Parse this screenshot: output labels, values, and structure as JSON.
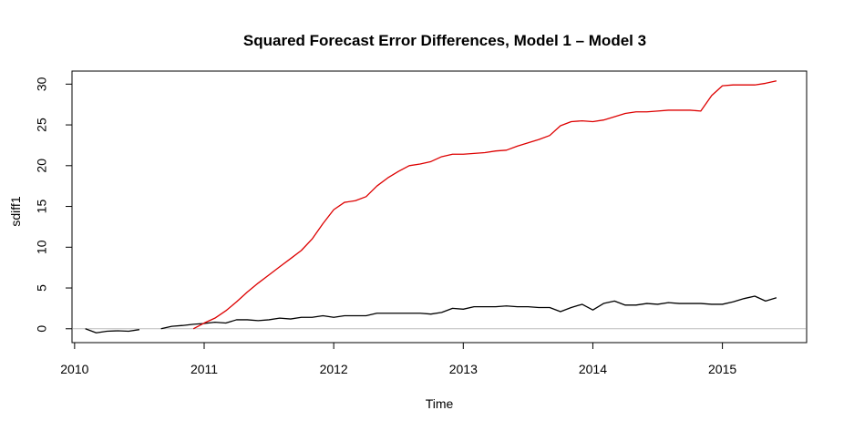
{
  "chart_data": {
    "type": "line",
    "title": "Squared Forecast Error Differences, Model 1 – Model 3",
    "xlabel": "Time",
    "ylabel": "sdiff1",
    "xlim": [
      2009.98,
      2015.65
    ],
    "ylim": [
      -1.7,
      31.6
    ],
    "x_ticks": [
      2010,
      2011,
      2012,
      2013,
      2014,
      2015
    ],
    "y_ticks": [
      0,
      5,
      10,
      15,
      20,
      25,
      30
    ],
    "reference_line": {
      "y": 0,
      "color": "#bebebe"
    },
    "series": [
      {
        "color": "#000000",
        "segments": [
          [
            [
              2010.083,
              0.0
            ],
            [
              2010.167,
              -0.5
            ],
            [
              2010.25,
              -0.3
            ],
            [
              2010.333,
              -0.25
            ],
            [
              2010.417,
              -0.3
            ],
            [
              2010.5,
              -0.1
            ]
          ],
          [
            [
              2010.667,
              0.0
            ],
            [
              2010.75,
              0.3
            ],
            [
              2010.833,
              0.4
            ],
            [
              2010.917,
              0.55
            ],
            [
              2011.0,
              0.65
            ],
            [
              2011.083,
              0.8
            ],
            [
              2011.167,
              0.7
            ],
            [
              2011.25,
              1.1
            ],
            [
              2011.333,
              1.1
            ],
            [
              2011.417,
              1.0
            ],
            [
              2011.5,
              1.1
            ],
            [
              2011.583,
              1.3
            ],
            [
              2011.667,
              1.2
            ],
            [
              2011.75,
              1.4
            ],
            [
              2011.833,
              1.4
            ],
            [
              2011.917,
              1.6
            ],
            [
              2012.0,
              1.4
            ],
            [
              2012.083,
              1.6
            ],
            [
              2012.167,
              1.6
            ],
            [
              2012.25,
              1.6
            ],
            [
              2012.333,
              1.9
            ],
            [
              2012.417,
              1.9
            ],
            [
              2012.5,
              1.9
            ],
            [
              2012.583,
              1.9
            ],
            [
              2012.667,
              1.9
            ],
            [
              2012.75,
              1.8
            ],
            [
              2012.833,
              2.0
            ],
            [
              2012.917,
              2.5
            ],
            [
              2013.0,
              2.4
            ],
            [
              2013.083,
              2.7
            ],
            [
              2013.167,
              2.7
            ],
            [
              2013.25,
              2.7
            ],
            [
              2013.333,
              2.8
            ],
            [
              2013.417,
              2.7
            ],
            [
              2013.5,
              2.7
            ],
            [
              2013.583,
              2.6
            ],
            [
              2013.667,
              2.6
            ],
            [
              2013.75,
              2.1
            ],
            [
              2013.833,
              2.6
            ],
            [
              2013.917,
              3.0
            ],
            [
              2014.0,
              2.3
            ],
            [
              2014.083,
              3.1
            ],
            [
              2014.167,
              3.4
            ],
            [
              2014.25,
              2.9
            ],
            [
              2014.333,
              2.9
            ],
            [
              2014.417,
              3.1
            ],
            [
              2014.5,
              3.0
            ],
            [
              2014.583,
              3.2
            ],
            [
              2014.667,
              3.1
            ],
            [
              2014.75,
              3.1
            ],
            [
              2014.833,
              3.1
            ],
            [
              2014.917,
              3.0
            ],
            [
              2015.0,
              3.0
            ],
            [
              2015.083,
              3.3
            ],
            [
              2015.167,
              3.7
            ],
            [
              2015.25,
              4.0
            ],
            [
              2015.333,
              3.4
            ],
            [
              2015.417,
              3.8
            ]
          ]
        ]
      },
      {
        "color": "#dd0000",
        "segments": [
          [
            [
              2010.917,
              0.0
            ],
            [
              2011.0,
              0.7
            ],
            [
              2011.083,
              1.3
            ],
            [
              2011.167,
              2.2
            ],
            [
              2011.25,
              3.3
            ],
            [
              2011.333,
              4.5
            ],
            [
              2011.417,
              5.6
            ],
            [
              2011.5,
              6.6
            ],
            [
              2011.583,
              7.6
            ],
            [
              2011.667,
              8.6
            ],
            [
              2011.75,
              9.6
            ],
            [
              2011.833,
              11.0
            ],
            [
              2011.917,
              12.9
            ],
            [
              2012.0,
              14.6
            ],
            [
              2012.083,
              15.5
            ],
            [
              2012.167,
              15.7
            ],
            [
              2012.25,
              16.2
            ],
            [
              2012.333,
              17.5
            ],
            [
              2012.417,
              18.5
            ],
            [
              2012.5,
              19.3
            ],
            [
              2012.583,
              20.0
            ],
            [
              2012.667,
              20.2
            ],
            [
              2012.75,
              20.5
            ],
            [
              2012.833,
              21.1
            ],
            [
              2012.917,
              21.4
            ],
            [
              2013.0,
              21.4
            ],
            [
              2013.083,
              21.5
            ],
            [
              2013.167,
              21.6
            ],
            [
              2013.25,
              21.8
            ],
            [
              2013.333,
              21.9
            ],
            [
              2013.417,
              22.4
            ],
            [
              2013.5,
              22.8
            ],
            [
              2013.583,
              23.2
            ],
            [
              2013.667,
              23.7
            ],
            [
              2013.75,
              24.9
            ],
            [
              2013.833,
              25.4
            ],
            [
              2013.917,
              25.5
            ],
            [
              2014.0,
              25.4
            ],
            [
              2014.083,
              25.6
            ],
            [
              2014.167,
              26.0
            ],
            [
              2014.25,
              26.4
            ],
            [
              2014.333,
              26.6
            ],
            [
              2014.417,
              26.6
            ],
            [
              2014.5,
              26.7
            ],
            [
              2014.583,
              26.8
            ],
            [
              2014.667,
              26.8
            ],
            [
              2014.75,
              26.8
            ],
            [
              2014.833,
              26.7
            ],
            [
              2014.917,
              28.6
            ],
            [
              2015.0,
              29.8
            ],
            [
              2015.083,
              29.9
            ],
            [
              2015.167,
              29.9
            ],
            [
              2015.25,
              29.9
            ],
            [
              2015.333,
              30.1
            ],
            [
              2015.417,
              30.4
            ]
          ]
        ]
      }
    ]
  }
}
